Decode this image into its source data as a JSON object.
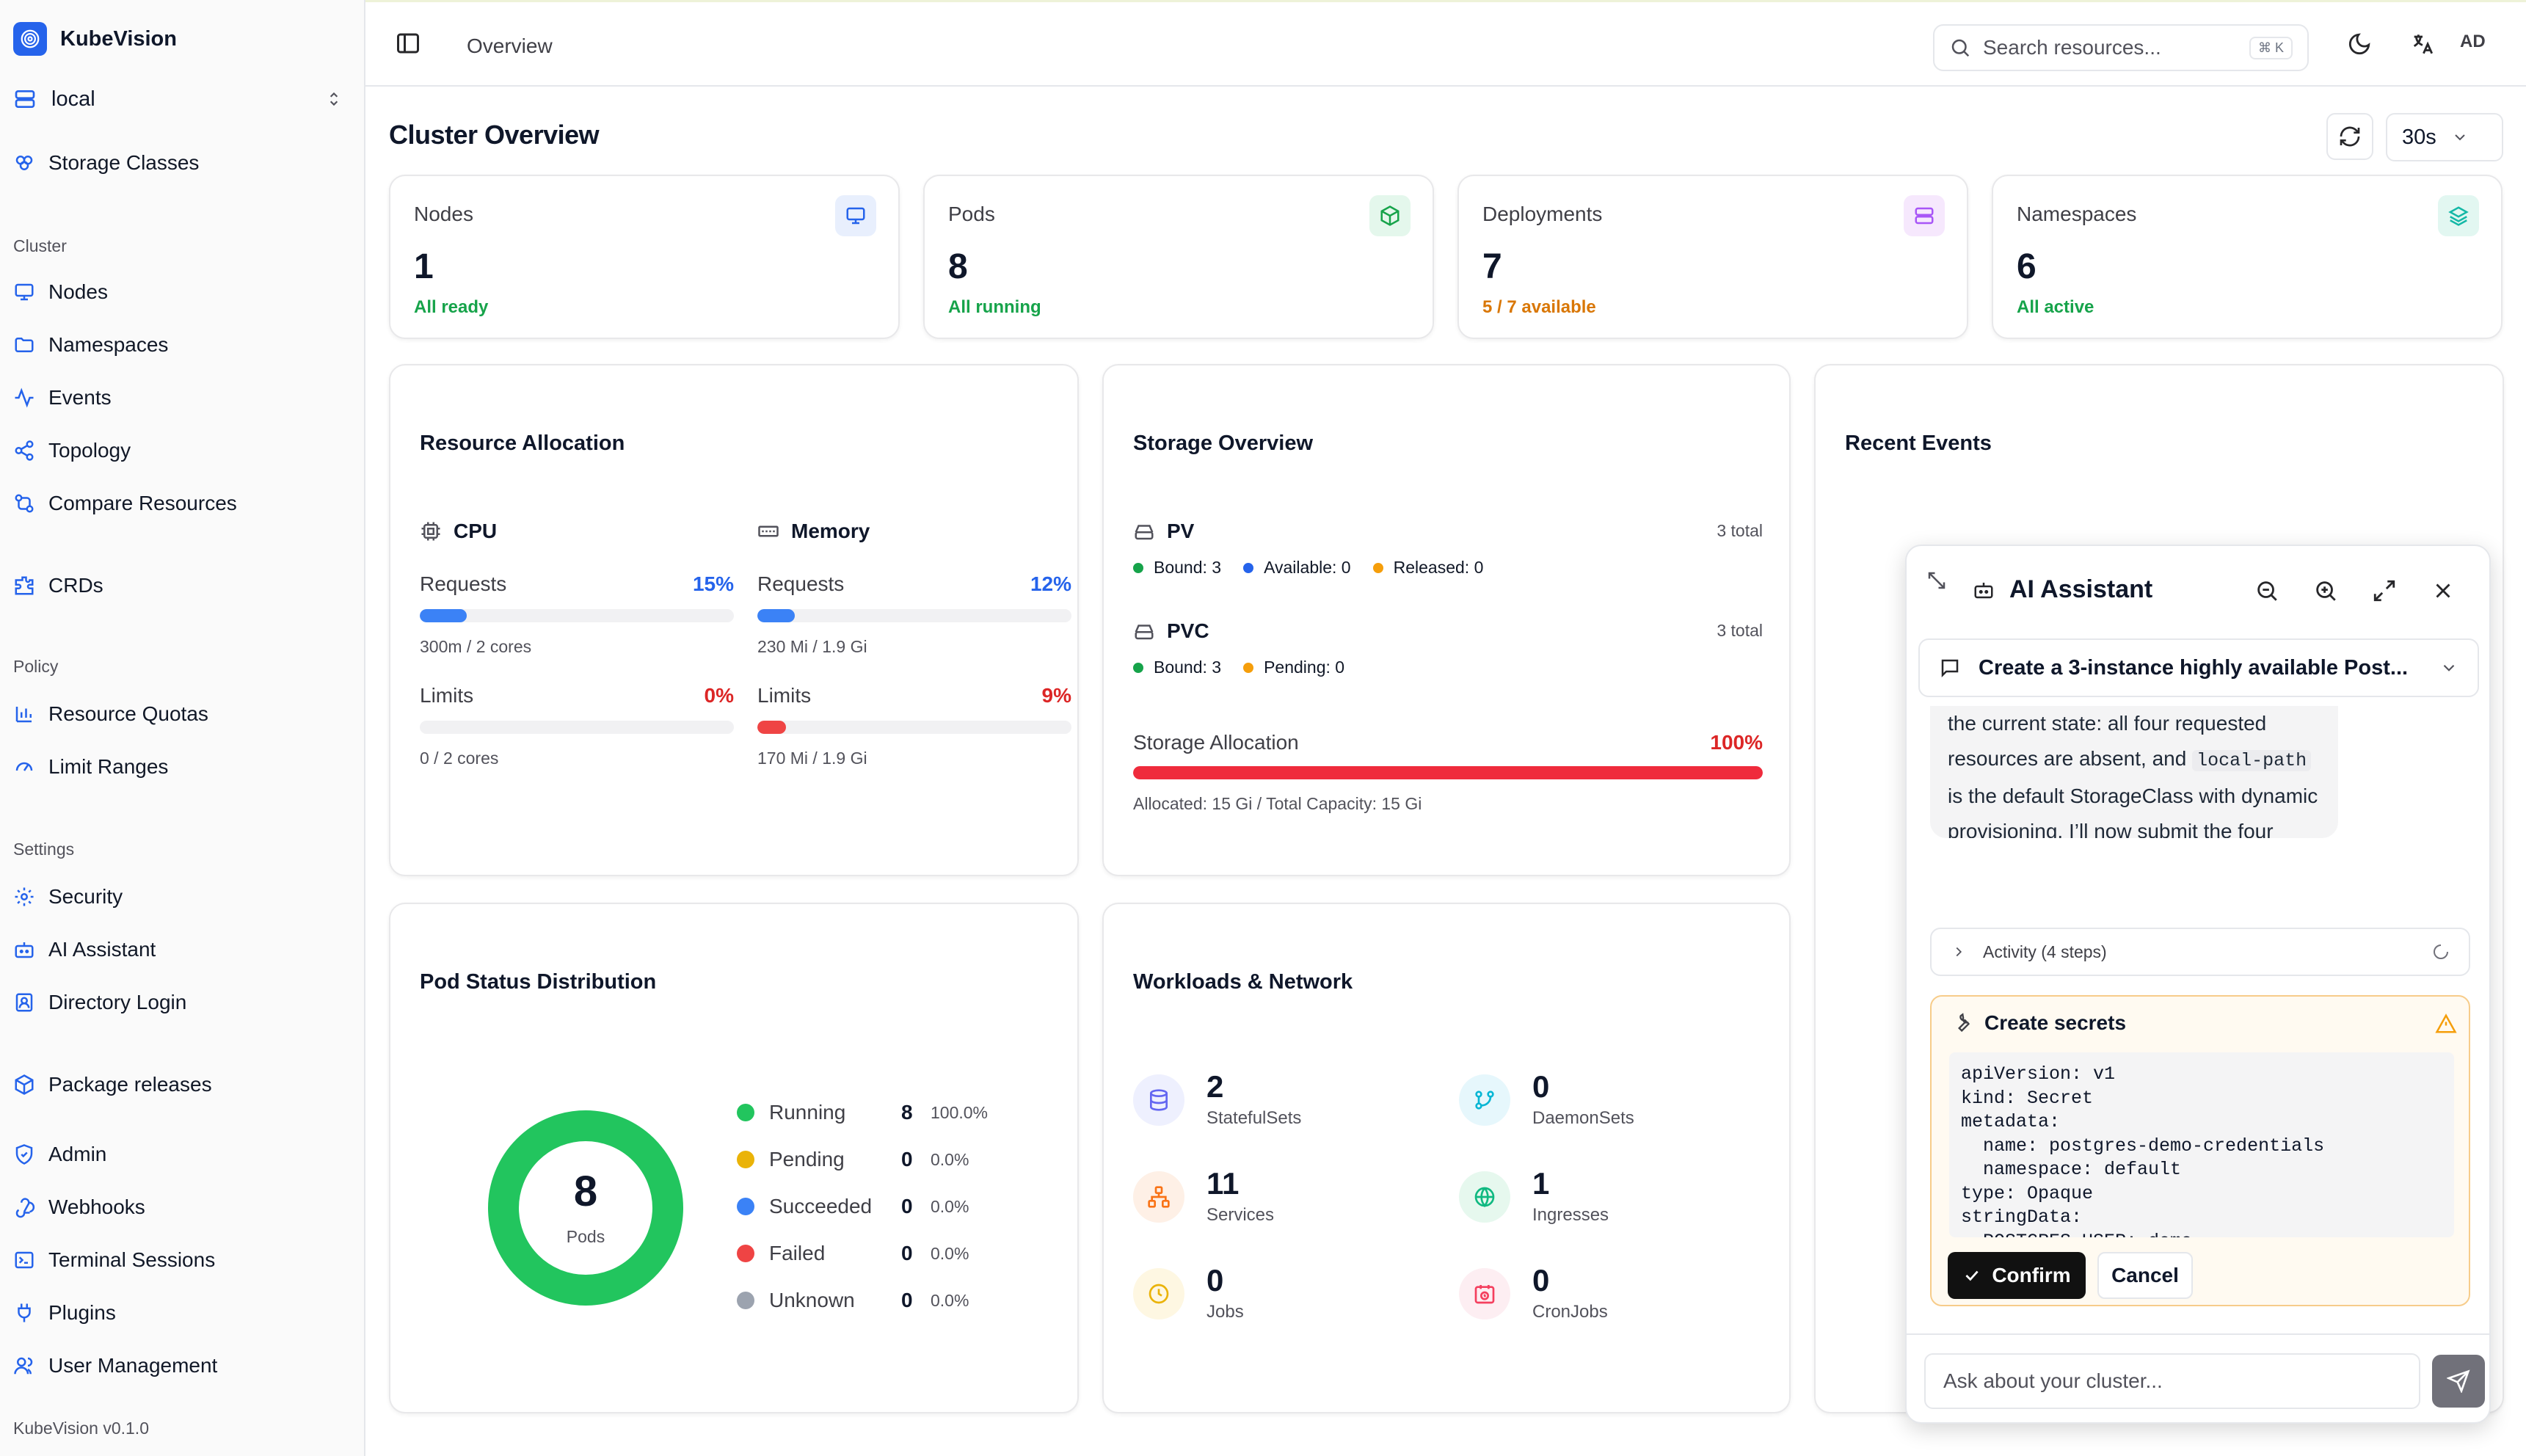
{
  "app": {
    "name": "KubeVision",
    "version": "KubeVision v0.1.0"
  },
  "sidebar": {
    "context": "local",
    "top_items": [
      {
        "label": "Storage Classes",
        "icon": "storage-classes-icon"
      }
    ],
    "sections": [
      {
        "title": "Cluster",
        "items": [
          {
            "label": "Nodes",
            "icon": "monitor-icon"
          },
          {
            "label": "Namespaces",
            "icon": "folder-icon"
          },
          {
            "label": "Events",
            "icon": "activity-icon"
          },
          {
            "label": "Topology",
            "icon": "share-icon"
          },
          {
            "label": "Compare Resources",
            "icon": "compare-icon"
          },
          {
            "label": "CRDs",
            "icon": "puzzle-icon"
          }
        ]
      },
      {
        "title": "Policy",
        "items": [
          {
            "label": "Resource Quotas",
            "icon": "bar-chart-icon"
          },
          {
            "label": "Limit Ranges",
            "icon": "gauge-icon"
          }
        ]
      },
      {
        "title": "Settings",
        "items": [
          {
            "label": "Security",
            "icon": "gear-icon"
          },
          {
            "label": "AI Assistant",
            "icon": "bot-icon"
          },
          {
            "label": "Directory Login",
            "icon": "id-card-icon"
          },
          {
            "label": "Package releases",
            "icon": "package-icon"
          },
          {
            "label": "Admin",
            "icon": "shield-icon"
          },
          {
            "label": "Webhooks",
            "icon": "webhook-icon"
          },
          {
            "label": "Terminal Sessions",
            "icon": "terminal-icon"
          },
          {
            "label": "Plugins",
            "icon": "plug-icon"
          },
          {
            "label": "User Management",
            "icon": "users-icon"
          }
        ]
      }
    ]
  },
  "topbar": {
    "breadcrumb": "Overview",
    "search_placeholder": "Search resources...",
    "search_shortcut": "⌘ K",
    "avatar": "AD"
  },
  "page": {
    "title": "Cluster Overview",
    "refresh_interval": "30s"
  },
  "stats": [
    {
      "label": "Nodes",
      "value": "1",
      "sub": "All ready",
      "sub_color": "#16a34a",
      "icon": "monitor-icon",
      "icon_bg": "#e8effd",
      "icon_color": "#2563eb"
    },
    {
      "label": "Pods",
      "value": "8",
      "sub": "All running",
      "sub_color": "#16a34a",
      "icon": "cube-icon",
      "icon_bg": "#e4f7ec",
      "icon_color": "#16a34a"
    },
    {
      "label": "Deployments",
      "value": "7",
      "sub": "5 / 7 available",
      "sub_color": "#d97706",
      "icon": "server-icon",
      "icon_bg": "#f6e8fd",
      "icon_color": "#a855f7"
    },
    {
      "label": "Namespaces",
      "value": "6",
      "sub": "All active",
      "sub_color": "#16a34a",
      "icon": "layers-icon",
      "icon_bg": "#e2f7f1",
      "icon_color": "#14b8a6"
    }
  ],
  "resource_allocation": {
    "title": "Resource Allocation",
    "cpu": {
      "label": "CPU",
      "requests_label": "Requests",
      "requests_pct": "15%",
      "requests_value": 15,
      "requests_detail": "300m / 2 cores",
      "limits_label": "Limits",
      "limits_pct": "0%",
      "limits_value": 0,
      "limits_detail": "0 / 2 cores"
    },
    "memory": {
      "label": "Memory",
      "requests_label": "Requests",
      "requests_pct": "12%",
      "requests_value": 12,
      "requests_detail": "230 Mi / 1.9 Gi",
      "limits_label": "Limits",
      "limits_pct": "9%",
      "limits_value": 9,
      "limits_detail": "170 Mi / 1.9 Gi"
    }
  },
  "storage": {
    "title": "Storage Overview",
    "pv": {
      "label": "PV",
      "total": "3 total",
      "items": [
        {
          "label": "Bound:",
          "value": "3",
          "color": "#16a34a"
        },
        {
          "label": "Available:",
          "value": "0",
          "color": "#2563eb"
        },
        {
          "label": "Released:",
          "value": "0",
          "color": "#f59e0b"
        }
      ]
    },
    "pvc": {
      "label": "PVC",
      "total": "3 total",
      "items": [
        {
          "label": "Bound:",
          "value": "3",
          "color": "#16a34a"
        },
        {
          "label": "Pending:",
          "value": "0",
          "color": "#f59e0b"
        }
      ]
    },
    "allocation_label": "Storage Allocation",
    "allocation_pct": "100%",
    "allocation_value": 100,
    "allocation_detail": "Allocated: 15 Gi / Total Capacity: 15 Gi"
  },
  "recent_events": {
    "title": "Recent Events"
  },
  "pod_status": {
    "title": "Pod Status Distribution",
    "total": "8",
    "total_label": "Pods",
    "items": [
      {
        "label": "Running",
        "count": "8",
        "pct": "100.0%",
        "color": "#22c55e"
      },
      {
        "label": "Pending",
        "count": "0",
        "pct": "0.0%",
        "color": "#eab308"
      },
      {
        "label": "Succeeded",
        "count": "0",
        "pct": "0.0%",
        "color": "#3b82f6"
      },
      {
        "label": "Failed",
        "count": "0",
        "pct": "0.0%",
        "color": "#ef4444"
      },
      {
        "label": "Unknown",
        "count": "0",
        "pct": "0.0%",
        "color": "#9ca3af"
      }
    ]
  },
  "workloads": {
    "title": "Workloads & Network",
    "items": [
      {
        "value": "2",
        "label": "StatefulSets",
        "icon": "database-icon",
        "bg": "#eef0fe",
        "color": "#6366f1"
      },
      {
        "value": "0",
        "label": "DaemonSets",
        "icon": "git-branch-icon",
        "bg": "#e6f7fc",
        "color": "#06b6d4"
      },
      {
        "value": "11",
        "label": "Services",
        "icon": "network-icon",
        "bg": "#fef0e6",
        "color": "#f97316"
      },
      {
        "value": "1",
        "label": "Ingresses",
        "icon": "globe-icon",
        "bg": "#e6f8ee",
        "color": "#10b981"
      },
      {
        "value": "0",
        "label": "Jobs",
        "icon": "clock-icon",
        "bg": "#fef7e2",
        "color": "#eab308"
      },
      {
        "value": "0",
        "label": "CronJobs",
        "icon": "calendar-clock-icon",
        "bg": "#fdeef2",
        "color": "#f43f5e"
      }
    ]
  },
  "ai": {
    "title": "AI Assistant",
    "conversation": "Create a 3-instance highly available Post...",
    "message_before": "the current state: all four requested resources are absent, and ",
    "message_code": "local-path",
    "message_after": " is the default StorageClass with dynamic provisioning. I’ll now submit the four approved creations.",
    "activity": "Activity (4 steps)",
    "tool_title": "Create secrets",
    "tool_code": "apiVersion: v1\nkind: Secret\nmetadata:\n  name: postgres-demo-credentials\n  namespace: default\ntype: Opaque\nstringData:\n  POSTGRES_USER: demo",
    "confirm": "Confirm",
    "cancel": "Cancel",
    "input_placeholder": "Ask about your cluster..."
  }
}
